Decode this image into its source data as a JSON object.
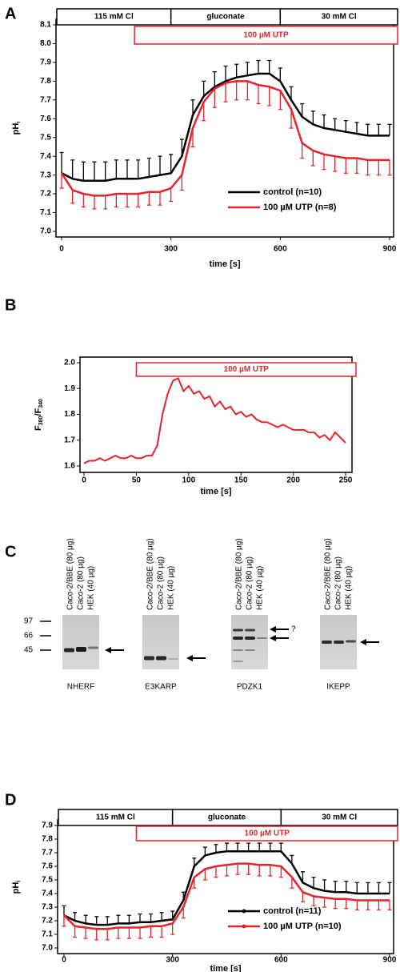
{
  "chart_data": [
    {
      "type": "line",
      "panel": "A",
      "xlabel": "time [s]",
      "ylabel": [
        {
          "text": "pH"
        },
        {
          "text": "i",
          "sub": true
        }
      ],
      "xlim": [
        0,
        900
      ],
      "xticks": [
        0,
        300,
        600,
        900
      ],
      "ylim": [
        7,
        8.1
      ],
      "yticks": [
        {
          "value": 7,
          "label": "7.0"
        },
        7.1,
        7.2,
        7.3,
        7.4,
        7.5,
        7.6,
        7.7,
        7.8,
        7.9,
        {
          "value": 8,
          "label": "8.0"
        },
        8.1
      ],
      "periods": [
        {
          "label": "115 mM Cl",
          "x": [
            0,
            300
          ]
        },
        {
          "label": "gluconate",
          "x": [
            300,
            600
          ]
        },
        {
          "label": "30 mM Cl",
          "x": [
            600,
            900
          ]
        }
      ],
      "treatment": {
        "label": "100 µM UTP",
        "x": [
          200,
          900
        ],
        "color": "#e3242b"
      },
      "legend": "lower right",
      "legend_markers": false,
      "x": [
        0,
        30,
        60,
        90,
        120,
        150,
        180,
        210,
        240,
        270,
        300,
        330,
        360,
        390,
        420,
        450,
        480,
        510,
        540,
        570,
        600,
        630,
        660,
        690,
        720,
        750,
        780,
        810,
        840,
        870,
        900
      ],
      "series": [
        {
          "name": "control (n=10)",
          "color": "#000000",
          "error_direction": "up",
          "values": [
            7.31,
            7.28,
            7.27,
            7.27,
            7.27,
            7.28,
            7.28,
            7.28,
            7.29,
            7.3,
            7.31,
            7.4,
            7.62,
            7.72,
            7.77,
            7.8,
            7.82,
            7.83,
            7.84,
            7.84,
            7.8,
            7.7,
            7.61,
            7.57,
            7.55,
            7.54,
            7.53,
            7.52,
            7.51,
            7.51,
            7.51
          ],
          "errors": [
            0.11,
            0.1,
            0.1,
            0.1,
            0.1,
            0.1,
            0.1,
            0.1,
            0.1,
            0.1,
            0.1,
            0.09,
            0.08,
            0.08,
            0.08,
            0.08,
            0.07,
            0.07,
            0.07,
            0.07,
            0.07,
            0.07,
            0.07,
            0.07,
            0.07,
            0.06,
            0.06,
            0.06,
            0.06,
            0.06,
            0.06
          ]
        },
        {
          "name": "100 µM UTP (n=8)",
          "color": "#e3242b",
          "error_direction": "down",
          "values": [
            7.31,
            7.22,
            7.2,
            7.19,
            7.19,
            7.2,
            7.2,
            7.2,
            7.21,
            7.21,
            7.23,
            7.3,
            7.55,
            7.69,
            7.76,
            7.79,
            7.8,
            7.8,
            7.78,
            7.77,
            7.75,
            7.65,
            7.47,
            7.43,
            7.41,
            7.4,
            7.39,
            7.39,
            7.38,
            7.38,
            7.38
          ],
          "errors": [
            0.08,
            0.07,
            0.07,
            0.07,
            0.07,
            0.07,
            0.07,
            0.07,
            0.07,
            0.07,
            0.07,
            0.08,
            0.1,
            0.1,
            0.1,
            0.1,
            0.1,
            0.1,
            0.1,
            0.1,
            0.1,
            0.1,
            0.08,
            0.08,
            0.08,
            0.08,
            0.08,
            0.08,
            0.08,
            0.08,
            0.08
          ]
        }
      ]
    },
    {
      "type": "line",
      "panel": "B",
      "xlabel": "time [s]",
      "ylabel": [
        {
          "text": "F"
        },
        {
          "text": "380",
          "sub": true
        },
        {
          "text": "/F"
        },
        {
          "text": "340",
          "sub": true
        }
      ],
      "xlim": [
        0,
        250
      ],
      "xticks": [
        0,
        50,
        100,
        150,
        200,
        250
      ],
      "ylim": [
        1.6,
        2
      ],
      "yticks": [
        1.6,
        1.7,
        1.8,
        1.9,
        {
          "value": 2,
          "label": "2.0"
        }
      ],
      "treatment": {
        "label": "100 µM UTP",
        "x": [
          50,
          250
        ],
        "color": "#e3242b"
      },
      "x": [
        0,
        5,
        10,
        15,
        20,
        25,
        30,
        35,
        40,
        45,
        50,
        55,
        60,
        65,
        70,
        75,
        80,
        85,
        90,
        95,
        100,
        105,
        110,
        115,
        120,
        125,
        130,
        135,
        140,
        145,
        150,
        155,
        160,
        165,
        170,
        175,
        180,
        185,
        190,
        195,
        200,
        205,
        210,
        215,
        220,
        225,
        230,
        235,
        240,
        245,
        250
      ],
      "series": [
        {
          "color": "#e3242b",
          "values": [
            1.61,
            1.62,
            1.62,
            1.63,
            1.62,
            1.63,
            1.64,
            1.63,
            1.63,
            1.64,
            1.63,
            1.63,
            1.64,
            1.64,
            1.68,
            1.8,
            1.88,
            1.93,
            1.94,
            1.89,
            1.91,
            1.88,
            1.89,
            1.86,
            1.87,
            1.83,
            1.85,
            1.82,
            1.83,
            1.8,
            1.81,
            1.79,
            1.8,
            1.78,
            1.77,
            1.77,
            1.76,
            1.75,
            1.76,
            1.75,
            1.74,
            1.74,
            1.74,
            1.73,
            1.73,
            1.71,
            1.72,
            1.7,
            1.73,
            1.71,
            1.69
          ]
        }
      ]
    },
    {
      "type": "line",
      "panel": "D",
      "xlabel": "time [s]",
      "ylabel": [
        {
          "text": "pH"
        },
        {
          "text": "i",
          "sub": true
        }
      ],
      "xlim": [
        0,
        900
      ],
      "xticks": [
        0,
        300,
        600,
        900
      ],
      "ylim": [
        7,
        7.9
      ],
      "yticks": [
        {
          "value": 7,
          "label": "7.0"
        },
        7.1,
        7.2,
        7.3,
        7.4,
        7.5,
        7.6,
        7.7,
        7.8,
        7.9
      ],
      "periods": [
        {
          "label": "115 mM Cl",
          "x": [
            0,
            300
          ]
        },
        {
          "label": "gluconate",
          "x": [
            300,
            600
          ]
        },
        {
          "label": "30 mM Cl",
          "x": [
            600,
            900
          ]
        }
      ],
      "treatment": {
        "label": "100 µM UTP",
        "x": [
          200,
          900
        ],
        "color": "#e3242b"
      },
      "legend": "lower right",
      "legend_markers": true,
      "x": [
        0,
        30,
        60,
        90,
        120,
        150,
        180,
        210,
        240,
        270,
        300,
        330,
        360,
        390,
        420,
        450,
        480,
        510,
        540,
        570,
        600,
        630,
        660,
        690,
        720,
        750,
        780,
        810,
        840,
        870,
        900
      ],
      "series": [
        {
          "name": "control (n=11)",
          "color": "#000000",
          "error_direction": "up",
          "values": [
            7.24,
            7.2,
            7.18,
            7.17,
            7.17,
            7.18,
            7.18,
            7.19,
            7.19,
            7.2,
            7.21,
            7.35,
            7.6,
            7.68,
            7.7,
            7.71,
            7.71,
            7.71,
            7.71,
            7.71,
            7.71,
            7.62,
            7.48,
            7.44,
            7.42,
            7.41,
            7.41,
            7.4,
            7.4,
            7.4,
            7.4
          ],
          "errors": [
            0.07,
            0.06,
            0.06,
            0.06,
            0.06,
            0.06,
            0.06,
            0.06,
            0.06,
            0.06,
            0.06,
            0.06,
            0.06,
            0.06,
            0.06,
            0.06,
            0.06,
            0.06,
            0.06,
            0.06,
            0.06,
            0.06,
            0.08,
            0.08,
            0.08,
            0.08,
            0.08,
            0.08,
            0.08,
            0.08,
            0.08
          ]
        },
        {
          "name": "100 µM UTP (n=10)",
          "color": "#e3242b",
          "error_direction": "down",
          "values": [
            7.24,
            7.16,
            7.15,
            7.14,
            7.14,
            7.15,
            7.15,
            7.15,
            7.16,
            7.16,
            7.18,
            7.3,
            7.52,
            7.58,
            7.6,
            7.61,
            7.62,
            7.62,
            7.61,
            7.61,
            7.6,
            7.52,
            7.41,
            7.38,
            7.37,
            7.36,
            7.36,
            7.35,
            7.35,
            7.35,
            7.35
          ],
          "errors": [
            0.08,
            0.08,
            0.08,
            0.08,
            0.08,
            0.08,
            0.08,
            0.08,
            0.08,
            0.08,
            0.08,
            0.08,
            0.08,
            0.08,
            0.08,
            0.08,
            0.08,
            0.08,
            0.08,
            0.08,
            0.08,
            0.08,
            0.07,
            0.07,
            0.07,
            0.07,
            0.07,
            0.07,
            0.07,
            0.07,
            0.07
          ]
        }
      ]
    }
  ],
  "blot": {
    "panel": "C",
    "markers": [
      "97",
      "66",
      "45"
    ],
    "question": "?",
    "panels": [
      {
        "name": "NHERF",
        "lanes": [
          "Caco-2/BBE (80 µg)",
          "Caco-2 (80 µg)",
          "HEK (40 µg)"
        ]
      },
      {
        "name": "E3KARP",
        "lanes": [
          "Caco-2/BBE (80 µg)",
          "Caco-2 (80 µg)",
          "HEK (40 µg)"
        ]
      },
      {
        "name": "PDZK1",
        "lanes": [
          "Caco-2/BBE (80 µg)",
          "Caco-2 (80 µg)",
          "HEK (40 µg)"
        ]
      },
      {
        "name": "IKEPP",
        "lanes": [
          "Caco-2/BBE (80 µg)",
          "Caco-2 (80 µg)",
          "HEK (40 µg)"
        ]
      }
    ]
  }
}
